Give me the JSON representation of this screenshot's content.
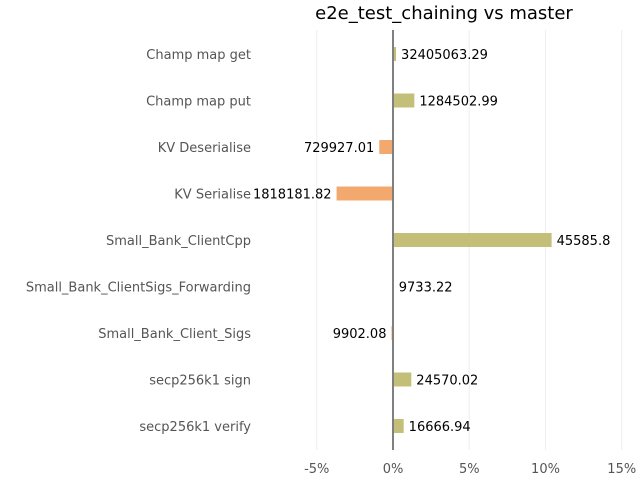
{
  "chart_data": {
    "type": "bar",
    "orientation": "horizontal",
    "title": "e2e_test_chaining vs master",
    "xlabel": "",
    "ylabel": "",
    "x_ticks": [
      "-5%",
      "0%",
      "5%",
      "10%",
      "15%"
    ],
    "x_tick_values": [
      -5,
      0,
      5,
      10,
      15
    ],
    "xlim": [
      -7,
      15
    ],
    "grid": "vertical",
    "zero_line": true,
    "colors": {
      "positive": "#c3bf79",
      "negative": "#f3a96d",
      "zero_line": "#808080",
      "grid": "#eeeeee"
    },
    "categories": [
      "Champ map get",
      "Champ map put",
      "KV Deserialise",
      "KV Serialise",
      "Small_Bank_ClientCpp",
      "Small_Bank_ClientSigs_Forwarding",
      "Small_Bank_Client_Sigs",
      "secp256k1 sign",
      "secp256k1 verify"
    ],
    "values": [
      0.2,
      1.4,
      -0.9,
      -3.7,
      10.4,
      0.05,
      -0.1,
      1.2,
      0.7
    ],
    "value_labels": [
      "32405063.29",
      "1284502.99",
      "729927.01",
      "1818181.82",
      "45585.8",
      "9733.22",
      "9902.08",
      "24570.02",
      "16666.94"
    ]
  }
}
